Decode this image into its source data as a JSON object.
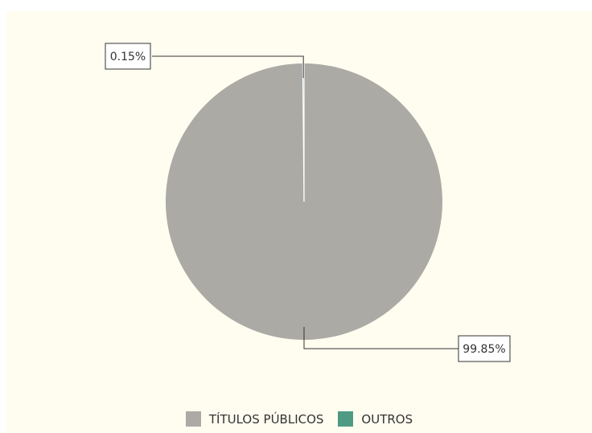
{
  "chart_data": {
    "type": "pie",
    "slices": [
      {
        "name": "TÍTULOS PÚBLICOS",
        "value": 99.85,
        "label": "99.85%",
        "color": "#abaaa5"
      },
      {
        "name": "OUTROS",
        "value": 0.15,
        "label": "0.15%",
        "color": "#4f9a82"
      }
    ],
    "legend": "bottom",
    "colors": {
      "background": "#fffdf0",
      "leader_line": "#333333"
    }
  }
}
